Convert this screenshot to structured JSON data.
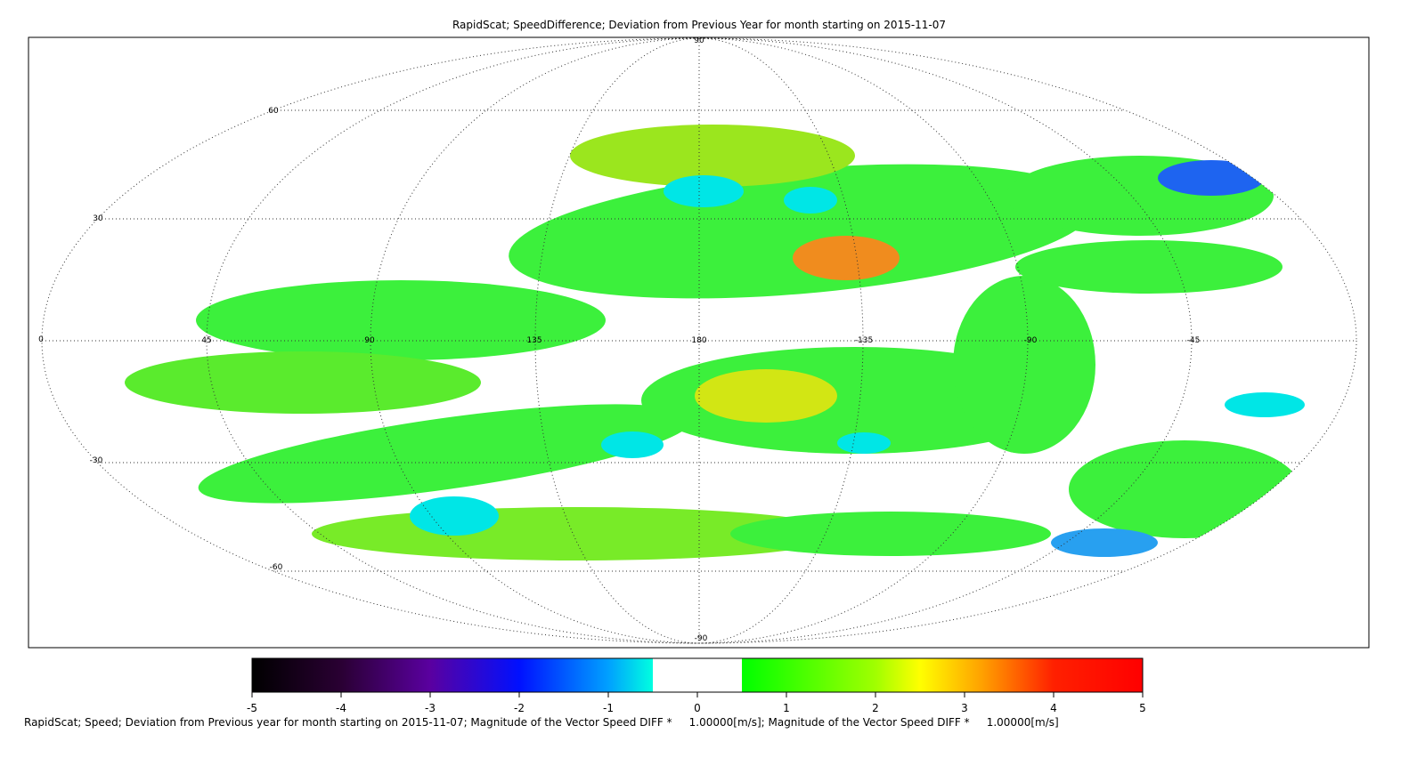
{
  "map": {
    "title": "RapidScat; SpeedDifference; Deviation from Previous Year for month starting on 2015-11-07",
    "lat_labels": [
      "90",
      "60",
      "30",
      "0",
      "-30",
      "-60",
      "-90"
    ],
    "lon_labels": [
      "45",
      "90",
      "135",
      "180",
      "-135",
      "-90",
      "-45"
    ],
    "colorbar": {
      "range": [
        -5,
        5
      ],
      "ticks": [
        -5,
        -4,
        -3,
        -2,
        -1,
        0,
        1,
        2,
        3,
        4,
        5
      ]
    },
    "caption": "RapidScat; Speed; Deviation from Previous year for month starting on 2015-11-07; Magnitude of the Vector Speed DIFF *     1.00000[m/s]; Magnitude of the Vector Speed DIFF *     1.00000[m/s]"
  }
}
